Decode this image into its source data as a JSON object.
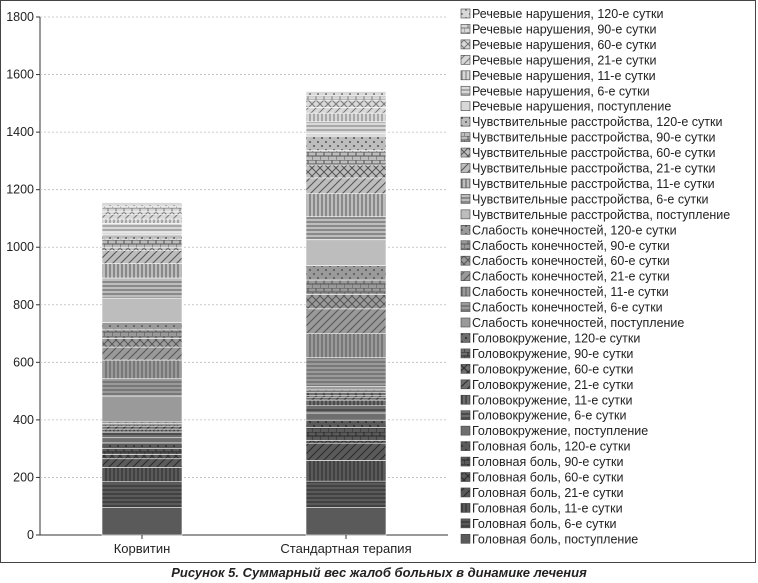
{
  "caption": "Рисунок 5. Суммарный вес жалоб больных в динамике лечения",
  "chart_data": {
    "type": "bar",
    "stacked": true,
    "categories": [
      "Корвитин",
      "Стандартная терапия"
    ],
    "ylim": [
      0,
      1800
    ],
    "yticks": [
      0,
      200,
      400,
      600,
      800,
      1000,
      1200,
      1400,
      1600,
      1800
    ],
    "legend_position": "right",
    "series": [
      {
        "name": "Головная боль, поступление",
        "values": [
          95,
          95
        ]
      },
      {
        "name": "Головная боль, 6-е сутки",
        "values": [
          90,
          92
        ]
      },
      {
        "name": "Головная боль, 11-е сутки",
        "values": [
          50,
          72
        ]
      },
      {
        "name": "Головная боль, 21-е сутки",
        "values": [
          30,
          60
        ]
      },
      {
        "name": "Головная боль, 60-е сутки",
        "values": [
          15,
          10
        ]
      },
      {
        "name": "Головная боль, 90-е сутки",
        "values": [
          20,
          45
        ]
      },
      {
        "name": "Головная боль, 120-е сутки",
        "values": [
          20,
          25
        ]
      },
      {
        "name": "Головокружение, поступление",
        "values": [
          18,
          25
        ]
      },
      {
        "name": "Головокружение, 6-е сутки",
        "values": [
          20,
          25
        ]
      },
      {
        "name": "Головокружение, 11-е сутки",
        "values": [
          10,
          20
        ]
      },
      {
        "name": "Головокружение, 21-е сутки",
        "values": [
          10,
          10
        ]
      },
      {
        "name": "Головокружение, 60-е сутки",
        "values": [
          5,
          5
        ]
      },
      {
        "name": "Головокружение, 90-е сутки",
        "values": [
          5,
          12
        ]
      },
      {
        "name": "Головокружение, 120-е сутки",
        "values": [
          5,
          8
        ]
      },
      {
        "name": "Слабость конечностей, поступление",
        "values": [
          90,
          12
        ]
      },
      {
        "name": "Слабость конечностей, 6-е сутки",
        "values": [
          60,
          100
        ]
      },
      {
        "name": "Слабость конечностей, 11-е сутки",
        "values": [
          65,
          85
        ]
      },
      {
        "name": "Слабость конечностей, 21-е сутки",
        "values": [
          45,
          85
        ]
      },
      {
        "name": "Слабость конечностей, 60-е сутки",
        "values": [
          30,
          50
        ]
      },
      {
        "name": "Слабость конечностей, 90-е сутки",
        "values": [
          30,
          50
        ]
      },
      {
        "name": "Слабость конечностей, 120-е сутки",
        "values": [
          25,
          50
        ]
      },
      {
        "name": "Чувствительные расстройства, поступление",
        "values": [
          85,
          90
        ]
      },
      {
        "name": "Чувствительные расстройства, 6-е сутки",
        "values": [
          70,
          80
        ]
      },
      {
        "name": "Чувствительные расстройства, 11-е сутки",
        "values": [
          50,
          80
        ]
      },
      {
        "name": "Чувствительные расстройства, 21-е сутки",
        "values": [
          45,
          55
        ]
      },
      {
        "name": "Чувствительные расстройства, 60-е сутки",
        "values": [
          10,
          45
        ]
      },
      {
        "name": "Чувствительные расстройства, 90-е сутки",
        "values": [
          30,
          50
        ]
      },
      {
        "name": "Чувствительные расстройства, 120-е сутки",
        "values": [
          15,
          50
        ]
      },
      {
        "name": "Речевые нарушения, поступление",
        "values": [
          10,
          10
        ]
      },
      {
        "name": "Речевые нарушения, 6-е сутки",
        "values": [
          30,
          40
        ]
      },
      {
        "name": "Речевые нарушения, 11-е сутки",
        "values": [
          15,
          30
        ]
      },
      {
        "name": "Речевые нарушения, 21-е сутки",
        "values": [
          15,
          20
        ]
      },
      {
        "name": "Речевые нарушения, 60-е сутки",
        "values": [
          10,
          25
        ]
      },
      {
        "name": "Речевые нарушения, 90-е сутки",
        "values": [
          20,
          15
        ]
      },
      {
        "name": "Речевые нарушения, 120-е сутки",
        "values": [
          12,
          15
        ]
      }
    ]
  }
}
